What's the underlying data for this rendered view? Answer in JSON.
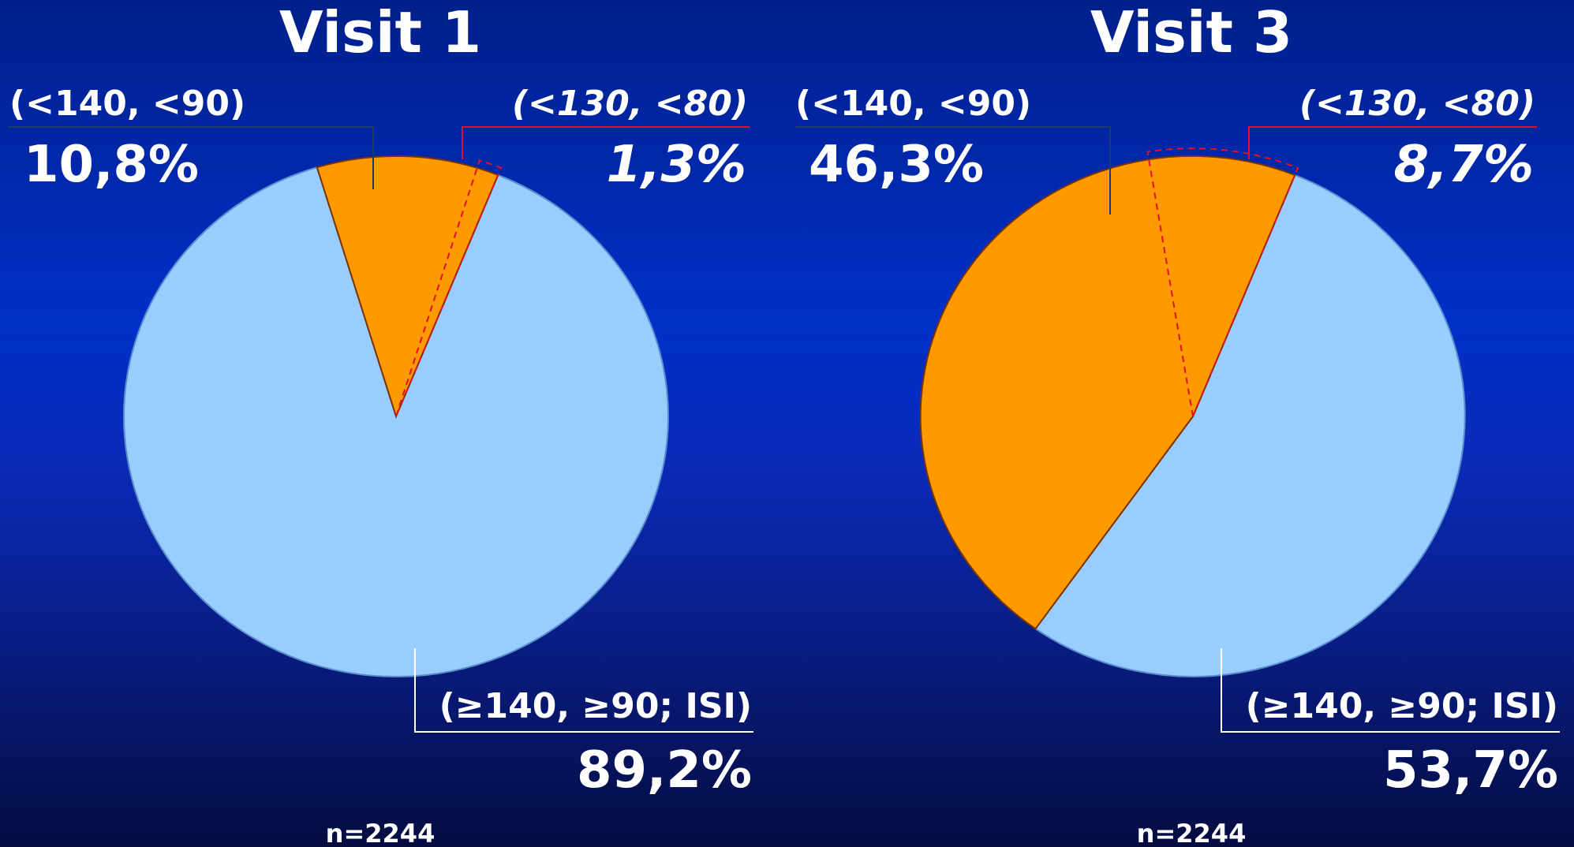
{
  "colors": {
    "controlled": "#ff9900",
    "uncontrolled": "#99ccff",
    "target_outline": "#e0102a",
    "controlled_leader": "#1a3a70",
    "uncontrolled_leader": "#ffffff"
  },
  "chart_data": [
    {
      "type": "pie",
      "title": "Visit 1",
      "n_label": "n=2244",
      "slices": [
        {
          "label": "(<140, <90)",
          "value_label": "10,8%",
          "value": 10.8
        },
        {
          "label": "(≥140, ≥90; ISI)",
          "value_label": "89,2%",
          "value": 89.2
        }
      ],
      "sub_slice": {
        "label": "(<130, <80)",
        "value_label": "1,3%",
        "value": 1.3
      }
    },
    {
      "type": "pie",
      "title": "Visit 3",
      "n_label": "n=2244",
      "slices": [
        {
          "label": "(<140, <90)",
          "value_label": "46,3%",
          "value": 46.3
        },
        {
          "label": "(≥140, ≥90; ISI)",
          "value_label": "53,7%",
          "value": 53.7
        }
      ],
      "sub_slice": {
        "label": "(<130, <80)",
        "value_label": "8,7%",
        "value": 8.7
      }
    }
  ]
}
